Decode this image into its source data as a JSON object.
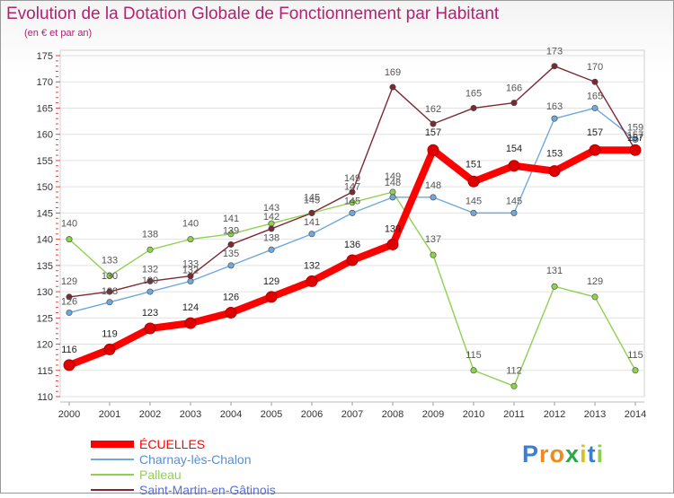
{
  "header": {
    "title": "Evolution de la Dotation Globale de Fonctionnement par Habitant",
    "subtitle": "(en € et par an)"
  },
  "chart_data": {
    "type": "line",
    "title": "Evolution de la Dotation Globale de Fonctionnement par Habitant",
    "subtitle": "(en € et par an)",
    "xlabel": "",
    "ylabel": "",
    "x": [
      "2000",
      "2001",
      "2002",
      "2003",
      "2004",
      "2005",
      "2006",
      "2007",
      "2008",
      "2009",
      "2010",
      "2011",
      "2012",
      "2013",
      "2014"
    ],
    "ylim": [
      110,
      175
    ],
    "yticks": [
      "110",
      "115",
      "120",
      "125",
      "130",
      "135",
      "140",
      "145",
      "150",
      "155",
      "160",
      "165",
      "170",
      "175"
    ],
    "grid": "horizontal",
    "legend_position": "bottom-left",
    "series": [
      {
        "name": "Palleau",
        "color": "#8fd14f",
        "values": [
          140,
          133,
          138,
          140,
          141,
          143,
          145,
          147,
          149,
          137,
          115,
          112,
          131,
          129,
          115
        ],
        "labels": [
          "140",
          "133",
          "138",
          "140",
          "141",
          "143",
          "145",
          "147",
          "149",
          "137",
          "115",
          "112",
          "131",
          "129",
          "115"
        ]
      },
      {
        "name": "Charnay-lès-Chalon",
        "color": "#6fa8dc",
        "values": [
          126,
          128,
          130,
          132,
          135,
          138,
          141,
          145,
          148,
          148,
          145,
          145,
          163,
          165,
          159
        ],
        "labels": [
          "126",
          "128",
          "130",
          "132",
          "135",
          "138",
          "141",
          "145",
          "148",
          "148",
          "145",
          "145",
          "163",
          "165",
          "159"
        ]
      },
      {
        "name": "Saint-Martin-en-Gâtinois",
        "color": "#7b2a35",
        "values": [
          129,
          130,
          132,
          133,
          139,
          142,
          145,
          149,
          169,
          162,
          165,
          166,
          173,
          170,
          157
        ],
        "labels": [
          "129",
          "130",
          "132",
          "133",
          "139",
          "142",
          "145",
          "149",
          "169",
          "162",
          "165",
          "166",
          "173",
          "170",
          "157"
        ]
      },
      {
        "name": "ÉCUELLES",
        "color": "#ff0000",
        "values": [
          116,
          119,
          123,
          124,
          126,
          129,
          132,
          136,
          139,
          157,
          151,
          154,
          153,
          157,
          157
        ],
        "labels": [
          "116",
          "119",
          "123",
          "124",
          "126",
          "129",
          "132",
          "136",
          "139",
          "157",
          "151",
          "154",
          "153",
          "157",
          "157"
        ]
      }
    ]
  },
  "legend": {
    "items": [
      {
        "label": "ÉCUELLES",
        "color": "#ff0000"
      },
      {
        "label": "Charnay-lès-Chalon",
        "color": "#6fa8dc"
      },
      {
        "label": "Palleau",
        "color": "#8fd14f"
      },
      {
        "label": "Saint-Martin-en-Gâtinois",
        "color": "#7b2a35"
      }
    ]
  },
  "logo": {
    "letters": [
      "P",
      "r",
      "o",
      "x",
      "i",
      "t",
      "i"
    ],
    "colors": [
      "#3a7fd0",
      "#f08a1c",
      "#f08a1c",
      "#2aa84a",
      "#d8c21e",
      "#3a7fd0",
      "#8fd14f"
    ]
  }
}
